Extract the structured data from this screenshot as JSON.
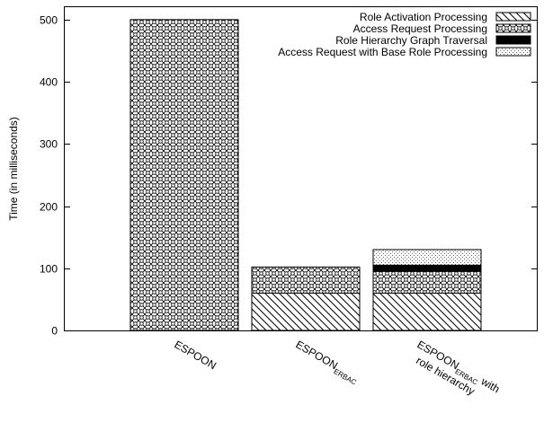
{
  "chart_data": {
    "type": "bar",
    "stacked": true,
    "ylabel": "Time (in milliseconds)",
    "ylim": [
      0,
      520
    ],
    "yticks": [
      0,
      100,
      200,
      300,
      400,
      500
    ],
    "grid": false,
    "legend_position": "top-right",
    "categories": [
      {
        "label": "ESPOON",
        "sub": "",
        "suffix": "",
        "line2": ""
      },
      {
        "label": "ESPOON",
        "sub": "ERBAC",
        "suffix": "",
        "line2": ""
      },
      {
        "label": "ESPOON",
        "sub": "ERBAC",
        "suffix": " with",
        "line2": "role hierarchy"
      }
    ],
    "series": [
      {
        "name": "Role Activation Processing",
        "pattern": "diagonal",
        "values": [
          0,
          60,
          60
        ]
      },
      {
        "name": "Access Request Processing",
        "pattern": "circles",
        "values": [
          500,
          42,
          35
        ]
      },
      {
        "name": "Role Hierarchy Graph Traversal",
        "pattern": "solid",
        "values": [
          0,
          0,
          10
        ]
      },
      {
        "name": "Access Request with Base Role Processing",
        "pattern": "dots",
        "values": [
          0,
          0,
          25
        ]
      }
    ]
  }
}
